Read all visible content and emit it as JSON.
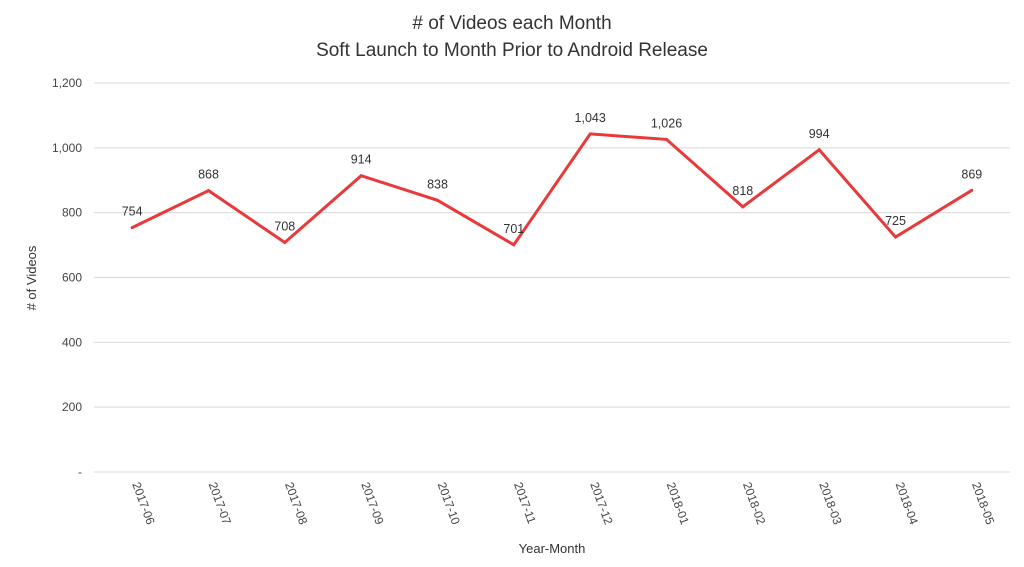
{
  "chart_data": {
    "type": "line",
    "title": [
      "# of Videos each Month",
      "Soft Launch to Month Prior to Android Release"
    ],
    "xlabel": "Year-Month",
    "ylabel": "# of Videos",
    "categories": [
      "2017-06",
      "2017-07",
      "2017-08",
      "2017-09",
      "2017-10",
      "2017-11",
      "2017-12",
      "2018-01",
      "2018-02",
      "2018-03",
      "2018-04",
      "2018-05"
    ],
    "series": [
      {
        "values": [
          754,
          868,
          708,
          914,
          838,
          701,
          1043,
          1026,
          818,
          994,
          725,
          869
        ],
        "data_labels": [
          "754",
          "868",
          "708",
          "914",
          "838",
          "701",
          "1,043",
          "1,026",
          "818",
          "994",
          "725",
          "869"
        ],
        "color": "#e8393b"
      }
    ],
    "ylim": [
      0,
      1200
    ],
    "yticks": [
      0,
      200,
      400,
      600,
      800,
      1000,
      1200
    ],
    "ytick_labels": [
      "-",
      "200",
      "400",
      "600",
      "800",
      "1,000",
      "1,200"
    ],
    "grid": true,
    "legend": "none"
  }
}
